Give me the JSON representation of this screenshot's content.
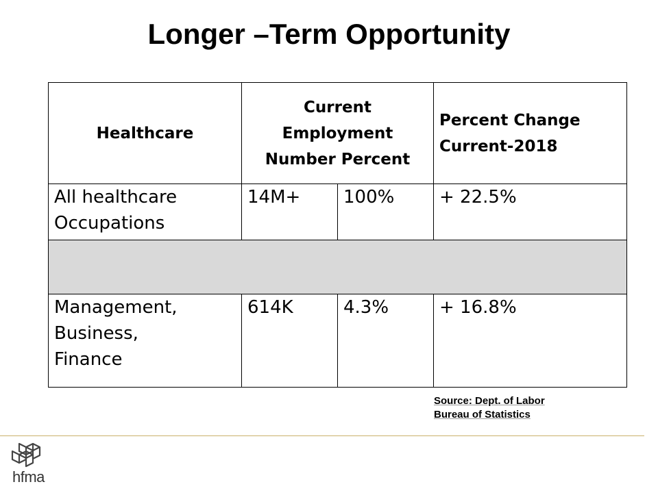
{
  "slide": {
    "title": "Longer –Term Opportunity"
  },
  "table": {
    "headers": {
      "col1": "Healthcare",
      "col2_line1": "Current",
      "col2_line2": "Employment",
      "col2_line3": "Number Percent",
      "col3_line1": "Percent Change",
      "col3_line2": "Current-2018"
    },
    "rows": [
      {
        "label_line1": "All healthcare",
        "label_line2": "Occupations",
        "number": "14M+",
        "percent": "100%",
        "change": "+ 22.5%"
      },
      {
        "label_line1": "Management,",
        "label_line2": "Business,",
        "label_line3": "Finance",
        "number": "614K",
        "percent": "4.3%",
        "change": "+ 16.8%"
      }
    ]
  },
  "source": {
    "line1": "Source: Dept. of Labor",
    "line2": "Bureau of Statistics"
  },
  "logo": {
    "text": "hfma",
    "icon": "hfma-logo-icon"
  }
}
